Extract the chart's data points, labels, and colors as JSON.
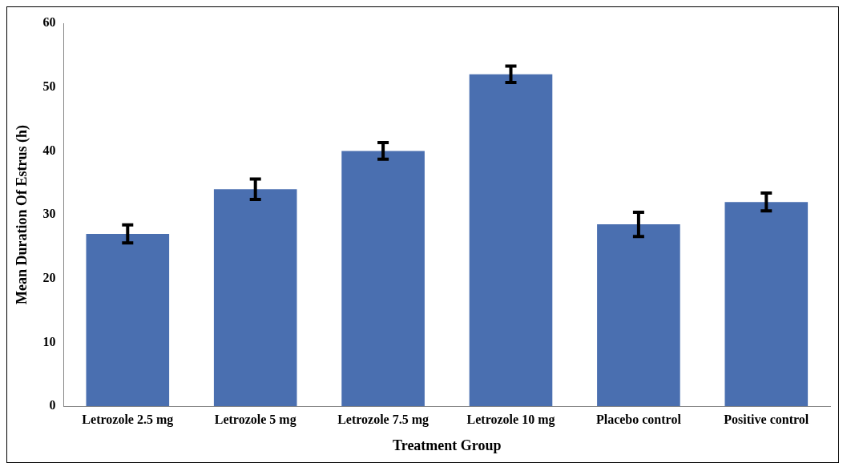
{
  "chart_data": {
    "type": "bar",
    "xlabel": "Treatment Group",
    "ylabel": "Mean Duration Of Estrus (h)",
    "categories": [
      "Letrozole 2.5 mg",
      "Letrozole 5 mg",
      "Letrozole 7.5 mg",
      "Letrozole 10 mg",
      "Placebo control",
      "Positive control"
    ],
    "values": [
      27,
      34,
      40,
      52,
      28.5,
      32
    ],
    "errors": [
      1.4,
      1.6,
      1.3,
      1.3,
      1.9,
      1.4
    ],
    "color": "#4a6fb0",
    "ylim": [
      0,
      60
    ],
    "yticks": [
      0,
      10,
      20,
      30,
      40,
      50,
      60
    ],
    "grid": false,
    "legend": false
  }
}
